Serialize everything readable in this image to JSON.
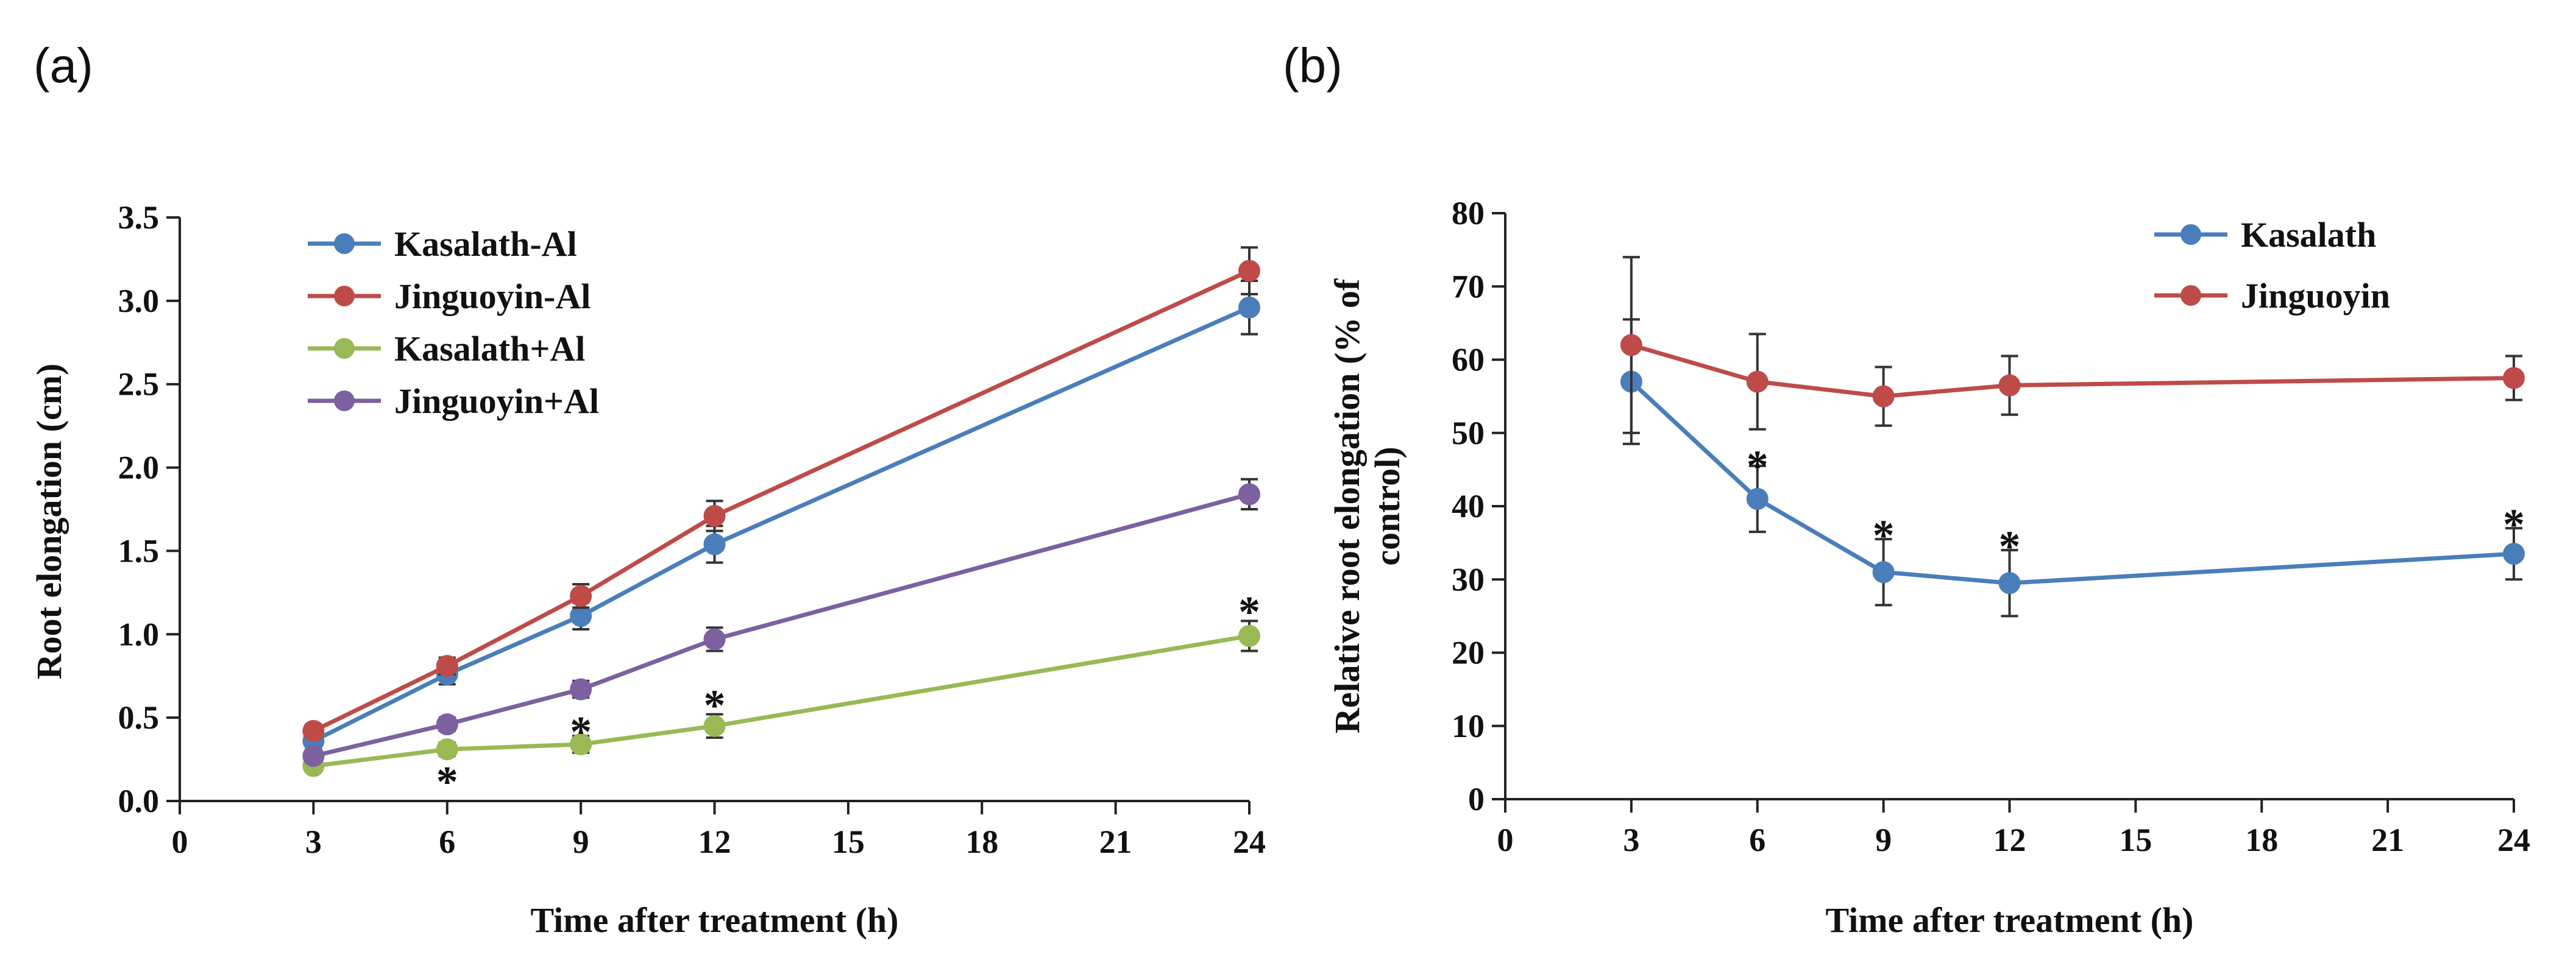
{
  "chart_data": [
    {
      "panel_label": "(a)",
      "type": "line",
      "title": "",
      "xlabel": "Time after treatment (h)",
      "ylabel": "Root elongation (cm)",
      "xlim": [
        0,
        24
      ],
      "ylim": [
        0,
        3.5
      ],
      "xticks": [
        "0",
        "3",
        "6",
        "9",
        "12",
        "15",
        "18",
        "21",
        "24"
      ],
      "yticks": [
        "0.0",
        "0.5",
        "1.0",
        "1.5",
        "2.0",
        "2.5",
        "3.0",
        "3.5"
      ],
      "xtick_values": [
        0,
        3,
        6,
        9,
        12,
        15,
        18,
        21,
        24
      ],
      "ytick_values": [
        0,
        0.5,
        1.0,
        1.5,
        2.0,
        2.5,
        3.0,
        3.5
      ],
      "legend_position": "top-left",
      "grid": false,
      "x": [
        3,
        6,
        9,
        12,
        24
      ],
      "series": [
        {
          "name": "Kasalath-Al",
          "color": "#4a7ebb",
          "values": [
            0.36,
            0.76,
            1.11,
            1.54,
            2.96
          ],
          "errors": [
            0.05,
            0.06,
            0.08,
            0.11,
            0.16
          ]
        },
        {
          "name": "Jinguoyin-Al",
          "color": "#be4b48",
          "values": [
            0.42,
            0.81,
            1.23,
            1.71,
            3.18
          ],
          "errors": [
            0.04,
            0.05,
            0.07,
            0.09,
            0.14
          ]
        },
        {
          "name": "Kasalath+Al",
          "color": "#98b954",
          "values": [
            0.21,
            0.31,
            0.34,
            0.45,
            0.99
          ],
          "errors": [
            0.03,
            0.04,
            0.05,
            0.07,
            0.09
          ]
        },
        {
          "name": "Jinguoyin+Al",
          "color": "#7d60a0",
          "values": [
            0.27,
            0.46,
            0.67,
            0.97,
            1.84
          ],
          "errors": [
            0.03,
            0.04,
            0.05,
            0.07,
            0.09
          ]
        }
      ],
      "annotations": [
        {
          "text": "*",
          "x": 6,
          "y": 0.18
        },
        {
          "text": "*",
          "x": 9,
          "y": 0.48
        },
        {
          "text": "*",
          "x": 12,
          "y": 0.64
        },
        {
          "text": "*",
          "x": 24,
          "y": 1.2
        }
      ]
    },
    {
      "panel_label": "(b)",
      "type": "line",
      "title": "",
      "xlabel": "Time after treatment (h)",
      "ylabel": "Relative root elongation (% of control)",
      "ylabel_lines": [
        "Relative root elongation (% of",
        "control)"
      ],
      "xlim": [
        0,
        24
      ],
      "ylim": [
        0,
        80
      ],
      "xticks": [
        "0",
        "3",
        "6",
        "9",
        "12",
        "15",
        "18",
        "21",
        "24"
      ],
      "yticks": [
        "0",
        "10",
        "20",
        "30",
        "40",
        "50",
        "60",
        "70",
        "80"
      ],
      "xtick_values": [
        0,
        3,
        6,
        9,
        12,
        15,
        18,
        21,
        24
      ],
      "ytick_values": [
        0,
        10,
        20,
        30,
        40,
        50,
        60,
        70,
        80
      ],
      "legend_position": "top-right",
      "grid": false,
      "x": [
        3,
        6,
        9,
        12,
        24
      ],
      "series": [
        {
          "name": "Kasalath",
          "color": "#4a7ebb",
          "values": [
            57,
            41,
            31,
            29.5,
            33.5
          ],
          "errors": [
            8.5,
            4.5,
            4.5,
            4.5,
            3.5
          ]
        },
        {
          "name": "Jinguoyin",
          "color": "#be4b48",
          "values": [
            62,
            57,
            55,
            56.5,
            57.5
          ],
          "errors": [
            12,
            6.5,
            4,
            4,
            3
          ]
        }
      ],
      "annotations": [
        {
          "text": "*",
          "x": 6,
          "y": 47
        },
        {
          "text": "*",
          "x": 9,
          "y": 37.5
        },
        {
          "text": "*",
          "x": 12,
          "y": 36
        },
        {
          "text": "*",
          "x": 24,
          "y": 39
        }
      ]
    }
  ]
}
